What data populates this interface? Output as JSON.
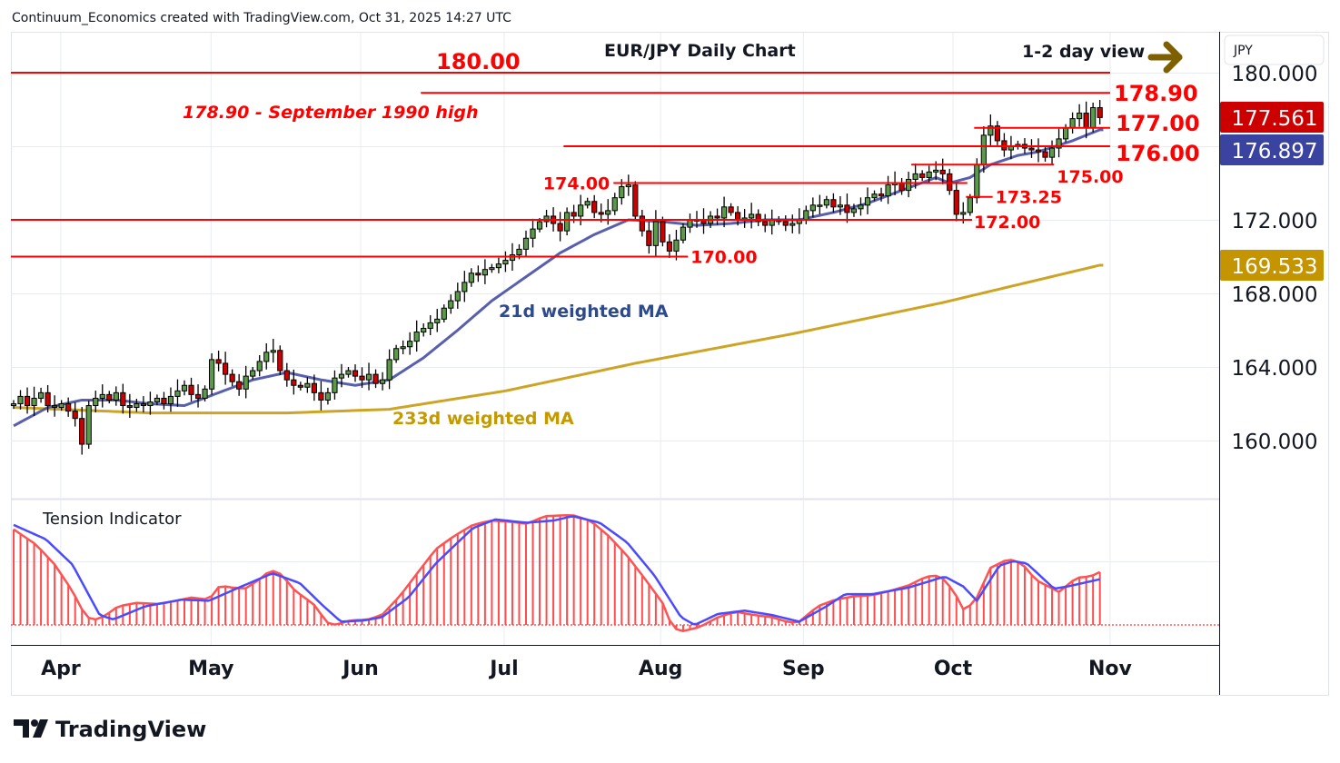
{
  "header": {
    "credit": "Continuum_Economics created with TradingView.com, Oct 31, 2025 14:27 UTC"
  },
  "footer": {
    "logo_text": "TradingView"
  },
  "currency_label": "JPY",
  "chart_data": {
    "type": "candlestick",
    "title": "EUR/JPY Daily Chart",
    "subtitle": "1-2 day view",
    "ylim": [
      157,
      182.5
    ],
    "y_ticks": [
      "180.000",
      "172.000",
      "168.000",
      "164.000",
      "160.000"
    ],
    "y_tick_values": [
      180,
      172,
      168,
      164,
      160
    ],
    "x_ticks": [
      {
        "label": "Apr",
        "index": 6.9
      },
      {
        "label": "May",
        "index": 28.9
      },
      {
        "label": "Jun",
        "index": 50.8
      },
      {
        "label": "Jul",
        "index": 71.8
      },
      {
        "label": "Aug",
        "index": 94.7
      },
      {
        "label": "Sep",
        "index": 115.6
      },
      {
        "label": "Oct",
        "index": 137.5
      },
      {
        "label": "Nov",
        "index": 160.5
      }
    ],
    "close": [
      162.0,
      162.4,
      161.9,
      162.3,
      162.6,
      161.9,
      161.8,
      162.0,
      161.6,
      161.2,
      159.8,
      161.9,
      162.3,
      162.5,
      162.2,
      162.6,
      161.9,
      161.8,
      162.0,
      161.9,
      162.1,
      162.3,
      162.0,
      162.4,
      162.7,
      163.0,
      162.5,
      162.3,
      162.8,
      164.4,
      164.2,
      163.6,
      163.2,
      162.8,
      163.5,
      163.8,
      164.3,
      164.8,
      164.9,
      163.8,
      163.3,
      163.0,
      162.9,
      163.1,
      162.6,
      162.2,
      162.6,
      163.4,
      163.6,
      163.8,
      163.5,
      163.3,
      163.6,
      163.1,
      163.3,
      164.4,
      165.0,
      165.1,
      165.4,
      165.9,
      166.1,
      166.4,
      166.6,
      167.2,
      167.6,
      168.1,
      168.6,
      169.1,
      169.0,
      169.3,
      169.4,
      169.6,
      169.8,
      170.1,
      170.4,
      171.0,
      171.5,
      171.9,
      172.2,
      171.8,
      171.4,
      172.4,
      172.2,
      172.8,
      173.0,
      172.4,
      172.3,
      172.5,
      173.2,
      173.8,
      173.9,
      172.2,
      171.4,
      170.6,
      171.9,
      170.8,
      170.3,
      170.9,
      171.6,
      172.0,
      172.0,
      171.8,
      172.2,
      172.1,
      172.7,
      172.4,
      172.0,
      172.1,
      172.3,
      171.9,
      171.7,
      172.0,
      171.9,
      171.7,
      171.8,
      172.0,
      172.5,
      172.8,
      172.8,
      173.1,
      172.7,
      172.8,
      172.4,
      172.6,
      172.8,
      173.2,
      173.4,
      173.3,
      173.9,
      174.0,
      173.6,
      174.2,
      174.5,
      174.3,
      174.6,
      174.7,
      174.5,
      173.6,
      172.3,
      172.4,
      173.2,
      175.0,
      176.6,
      177.1,
      176.3,
      175.8,
      176.0,
      176.1,
      175.9,
      175.8,
      175.7,
      175.4,
      175.9,
      176.4,
      177.0,
      177.5,
      177.8,
      177.0,
      178.1,
      177.561
    ],
    "ma21": {
      "label": "21d weighted MA",
      "last": "176.897",
      "color": "#3a43a0",
      "points": [
        [
          0,
          160.8
        ],
        [
          5,
          161.8
        ],
        [
          10,
          162.2
        ],
        [
          15,
          162.2
        ],
        [
          20,
          162.0
        ],
        [
          25,
          161.9
        ],
        [
          30,
          162.6
        ],
        [
          35,
          163.3
        ],
        [
          40,
          163.7
        ],
        [
          45,
          163.3
        ],
        [
          50,
          163.0
        ],
        [
          55,
          163.3
        ],
        [
          60,
          164.5
        ],
        [
          65,
          166.0
        ],
        [
          70,
          167.6
        ],
        [
          75,
          168.9
        ],
        [
          80,
          170.2
        ],
        [
          85,
          171.2
        ],
        [
          90,
          172.0
        ],
        [
          95,
          171.9
        ],
        [
          100,
          171.7
        ],
        [
          105,
          171.8
        ],
        [
          110,
          172.0
        ],
        [
          115,
          172.0
        ],
        [
          120,
          172.4
        ],
        [
          125,
          172.9
        ],
        [
          130,
          173.6
        ],
        [
          135,
          174.3
        ],
        [
          137,
          174.0
        ],
        [
          140,
          174.3
        ],
        [
          143,
          175.0
        ],
        [
          147,
          175.5
        ],
        [
          150,
          175.7
        ],
        [
          155,
          176.3
        ],
        [
          159,
          176.897
        ]
      ]
    },
    "ma233": {
      "label": "233d weighted MA",
      "last": "169.533",
      "color": "#c49500",
      "points": [
        [
          0,
          161.8
        ],
        [
          20,
          161.5
        ],
        [
          40,
          161.5
        ],
        [
          55,
          161.7
        ],
        [
          72,
          162.7
        ],
        [
          91,
          164.2
        ],
        [
          114,
          165.8
        ],
        [
          136,
          167.5
        ],
        [
          159,
          169.533
        ]
      ]
    },
    "last_price": {
      "label": "177.561",
      "color": "#cc0000"
    },
    "levels": [
      {
        "value": 180.0,
        "label": "180.00",
        "from": -1,
        "to": 160.5
      },
      {
        "value": 178.9,
        "label": "178.90",
        "from": 59.6,
        "to": 160.5
      },
      {
        "value": 177.0,
        "label": "177.00",
        "from": 140.6,
        "to": 160.5
      },
      {
        "value": 176.0,
        "label": "176.00",
        "from": 80.5,
        "to": 160.5
      },
      {
        "value": 175.0,
        "label": "175.00",
        "from": 131.4,
        "to": 152.3
      },
      {
        "value": 174.0,
        "label": "174.00",
        "from": 87.8,
        "to": 139.6
      },
      {
        "value": 173.25,
        "label": "173.25",
        "from": 139.4,
        "to": 143.3
      },
      {
        "value": 172.0,
        "label": "172.00",
        "from": -1,
        "to": 140.3
      },
      {
        "value": 170.0,
        "label": "170.00",
        "from": -1,
        "to": 98.7
      }
    ],
    "annotations": {
      "sept_1990": "178.90 - September 1990 high"
    },
    "indicator": {
      "title": "Tension Indicator",
      "red": [
        [
          0,
          0.87
        ],
        [
          3.3,
          0.73
        ],
        [
          6,
          0.55
        ],
        [
          8.6,
          0.31
        ],
        [
          10.6,
          0.07
        ],
        [
          12,
          0.05
        ],
        [
          13.3,
          0.08
        ],
        [
          15.3,
          0.17
        ],
        [
          18,
          0.2
        ],
        [
          21.3,
          0.19
        ],
        [
          24.6,
          0.23
        ],
        [
          25.9,
          0.25
        ],
        [
          28.6,
          0.23
        ],
        [
          30.2,
          0.36
        ],
        [
          31.9,
          0.34
        ],
        [
          33.9,
          0.33
        ],
        [
          35.9,
          0.41
        ],
        [
          37.6,
          0.5
        ],
        [
          39.2,
          0.46
        ],
        [
          41.2,
          0.31
        ],
        [
          43.9,
          0.19
        ],
        [
          45.9,
          0.02
        ],
        [
          47.2,
          0.0
        ],
        [
          49.2,
          0.04
        ],
        [
          51.9,
          0.05
        ],
        [
          53.9,
          0.09
        ],
        [
          56.5,
          0.26
        ],
        [
          59.2,
          0.48
        ],
        [
          61.8,
          0.69
        ],
        [
          64.5,
          0.81
        ],
        [
          67.2,
          0.91
        ],
        [
          69.8,
          0.95
        ],
        [
          72.5,
          0.94
        ],
        [
          75.1,
          0.92
        ],
        [
          77.8,
          0.99
        ],
        [
          81.8,
          1.0
        ],
        [
          84.4,
          0.95
        ],
        [
          87.1,
          0.81
        ],
        [
          89.8,
          0.63
        ],
        [
          92.4,
          0.42
        ],
        [
          95.1,
          0.19
        ],
        [
          96.4,
          -0.02
        ],
        [
          97.7,
          -0.06
        ],
        [
          100.4,
          -0.02
        ],
        [
          103.1,
          0.07
        ],
        [
          105.7,
          0.12
        ],
        [
          108.4,
          0.09
        ],
        [
          111,
          0.07
        ],
        [
          113.7,
          0.02
        ],
        [
          115,
          0.03
        ],
        [
          117.7,
          0.17
        ],
        [
          120.3,
          0.23
        ],
        [
          123,
          0.26
        ],
        [
          125.7,
          0.27
        ],
        [
          128.3,
          0.31
        ],
        [
          131,
          0.36
        ],
        [
          133.6,
          0.44
        ],
        [
          135.6,
          0.45
        ],
        [
          137.6,
          0.31
        ],
        [
          139.2,
          0.12
        ],
        [
          141,
          0.25
        ],
        [
          143,
          0.52
        ],
        [
          145.6,
          0.6
        ],
        [
          147.6,
          0.56
        ],
        [
          149.6,
          0.41
        ],
        [
          153,
          0.3
        ],
        [
          155.6,
          0.43
        ],
        [
          157.6,
          0.44
        ],
        [
          159.3,
          0.49
        ]
      ],
      "blue": [
        [
          0,
          0.91
        ],
        [
          4.7,
          0.78
        ],
        [
          8.6,
          0.55
        ],
        [
          12.6,
          0.09
        ],
        [
          14.6,
          0.05
        ],
        [
          19.3,
          0.17
        ],
        [
          24.6,
          0.23
        ],
        [
          28.6,
          0.22
        ],
        [
          32.6,
          0.33
        ],
        [
          37.9,
          0.47
        ],
        [
          41.9,
          0.38
        ],
        [
          45.2,
          0.18
        ],
        [
          47.9,
          0.03
        ],
        [
          51.2,
          0.04
        ],
        [
          53.9,
          0.07
        ],
        [
          57.8,
          0.25
        ],
        [
          61.8,
          0.56
        ],
        [
          67.2,
          0.88
        ],
        [
          70.5,
          0.96
        ],
        [
          75.1,
          0.93
        ],
        [
          79.1,
          0.95
        ],
        [
          81.8,
          0.99
        ],
        [
          85.8,
          0.93
        ],
        [
          89.8,
          0.75
        ],
        [
          93.8,
          0.45
        ],
        [
          97.7,
          0.07
        ],
        [
          99.7,
          0.0
        ],
        [
          103.1,
          0.1
        ],
        [
          107,
          0.13
        ],
        [
          111,
          0.09
        ],
        [
          115,
          0.03
        ],
        [
          119,
          0.17
        ],
        [
          121.7,
          0.28
        ],
        [
          125.7,
          0.28
        ],
        [
          131,
          0.34
        ],
        [
          136.3,
          0.44
        ],
        [
          139,
          0.35
        ],
        [
          141,
          0.22
        ],
        [
          144.3,
          0.54
        ],
        [
          146.3,
          0.58
        ],
        [
          148.3,
          0.56
        ],
        [
          152.3,
          0.33
        ],
        [
          154.3,
          0.35
        ],
        [
          159.3,
          0.42
        ]
      ]
    }
  }
}
